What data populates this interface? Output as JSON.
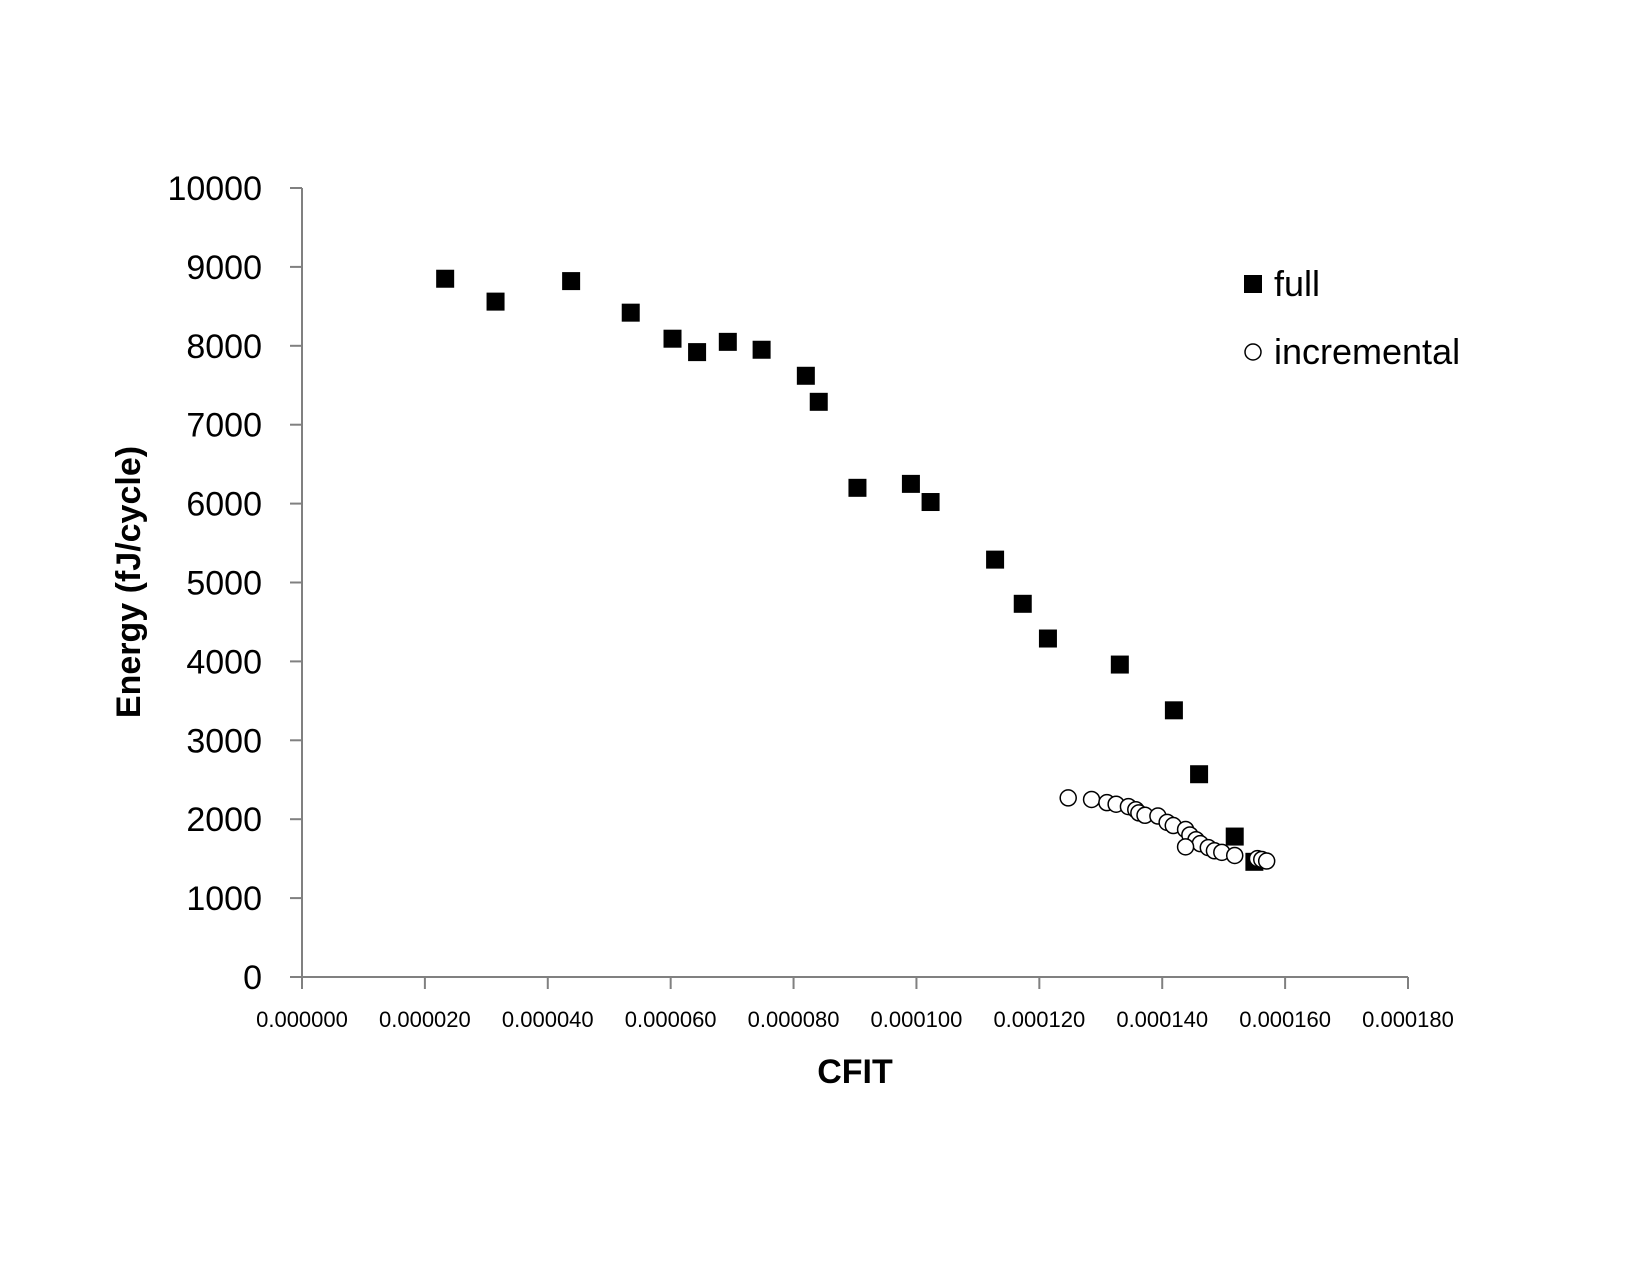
{
  "chart_data": {
    "type": "scatter",
    "title": "",
    "xlabel": "CFIT",
    "ylabel": "Energy (fJ/cycle)",
    "xlim": [
      0,
      0.00018
    ],
    "ylim": [
      0,
      10000
    ],
    "x_ticks": [
      "0.000000",
      "0.000020",
      "0.000040",
      "0.000060",
      "0.000080",
      "0.000100",
      "0.000120",
      "0.000140",
      "0.000160",
      "0.000180"
    ],
    "y_ticks": [
      "0",
      "1000",
      "2000",
      "3000",
      "4000",
      "5000",
      "6000",
      "7000",
      "8000",
      "9000",
      "10000"
    ],
    "grid": false,
    "legend_position": "top-right",
    "series": [
      {
        "name": "full",
        "marker": "filled-square",
        "color": "#000000",
        "points": [
          [
            2.33e-05,
            8850
          ],
          [
            3.15e-05,
            8560
          ],
          [
            4.38e-05,
            8820
          ],
          [
            5.35e-05,
            8420
          ],
          [
            6.03e-05,
            8090
          ],
          [
            6.43e-05,
            7920
          ],
          [
            6.93e-05,
            8050
          ],
          [
            7.48e-05,
            7950
          ],
          [
            8.2e-05,
            7620
          ],
          [
            8.41e-05,
            7290
          ],
          [
            9.04e-05,
            6200
          ],
          [
            9.91e-05,
            6250
          ],
          [
            0.0001023,
            6020
          ],
          [
            0.0001128,
            5290
          ],
          [
            0.0001173,
            4730
          ],
          [
            0.0001214,
            4290
          ],
          [
            0.0001331,
            3960
          ],
          [
            0.0001419,
            3380
          ],
          [
            0.000146,
            2570
          ],
          [
            0.0001518,
            1780
          ],
          [
            0.000155,
            1460
          ]
        ]
      },
      {
        "name": "incremental",
        "marker": "open-circle",
        "color": "#000000",
        "points": [
          [
            0.0001247,
            2270
          ],
          [
            0.0001285,
            2250
          ],
          [
            0.000131,
            2210
          ],
          [
            0.0001325,
            2190
          ],
          [
            0.0001345,
            2160
          ],
          [
            0.0001357,
            2120
          ],
          [
            0.0001362,
            2080
          ],
          [
            0.0001372,
            2050
          ],
          [
            0.0001393,
            2040
          ],
          [
            0.0001408,
            1960
          ],
          [
            0.0001418,
            1920
          ],
          [
            0.0001438,
            1870
          ],
          [
            0.0001445,
            1800
          ],
          [
            0.0001455,
            1740
          ],
          [
            0.0001462,
            1690
          ],
          [
            0.0001438,
            1650
          ],
          [
            0.0001475,
            1640
          ],
          [
            0.0001485,
            1600
          ],
          [
            0.0001497,
            1580
          ],
          [
            0.0001518,
            1540
          ],
          [
            0.0001555,
            1500
          ],
          [
            0.0001562,
            1490
          ],
          [
            0.000157,
            1470
          ]
        ]
      }
    ]
  }
}
